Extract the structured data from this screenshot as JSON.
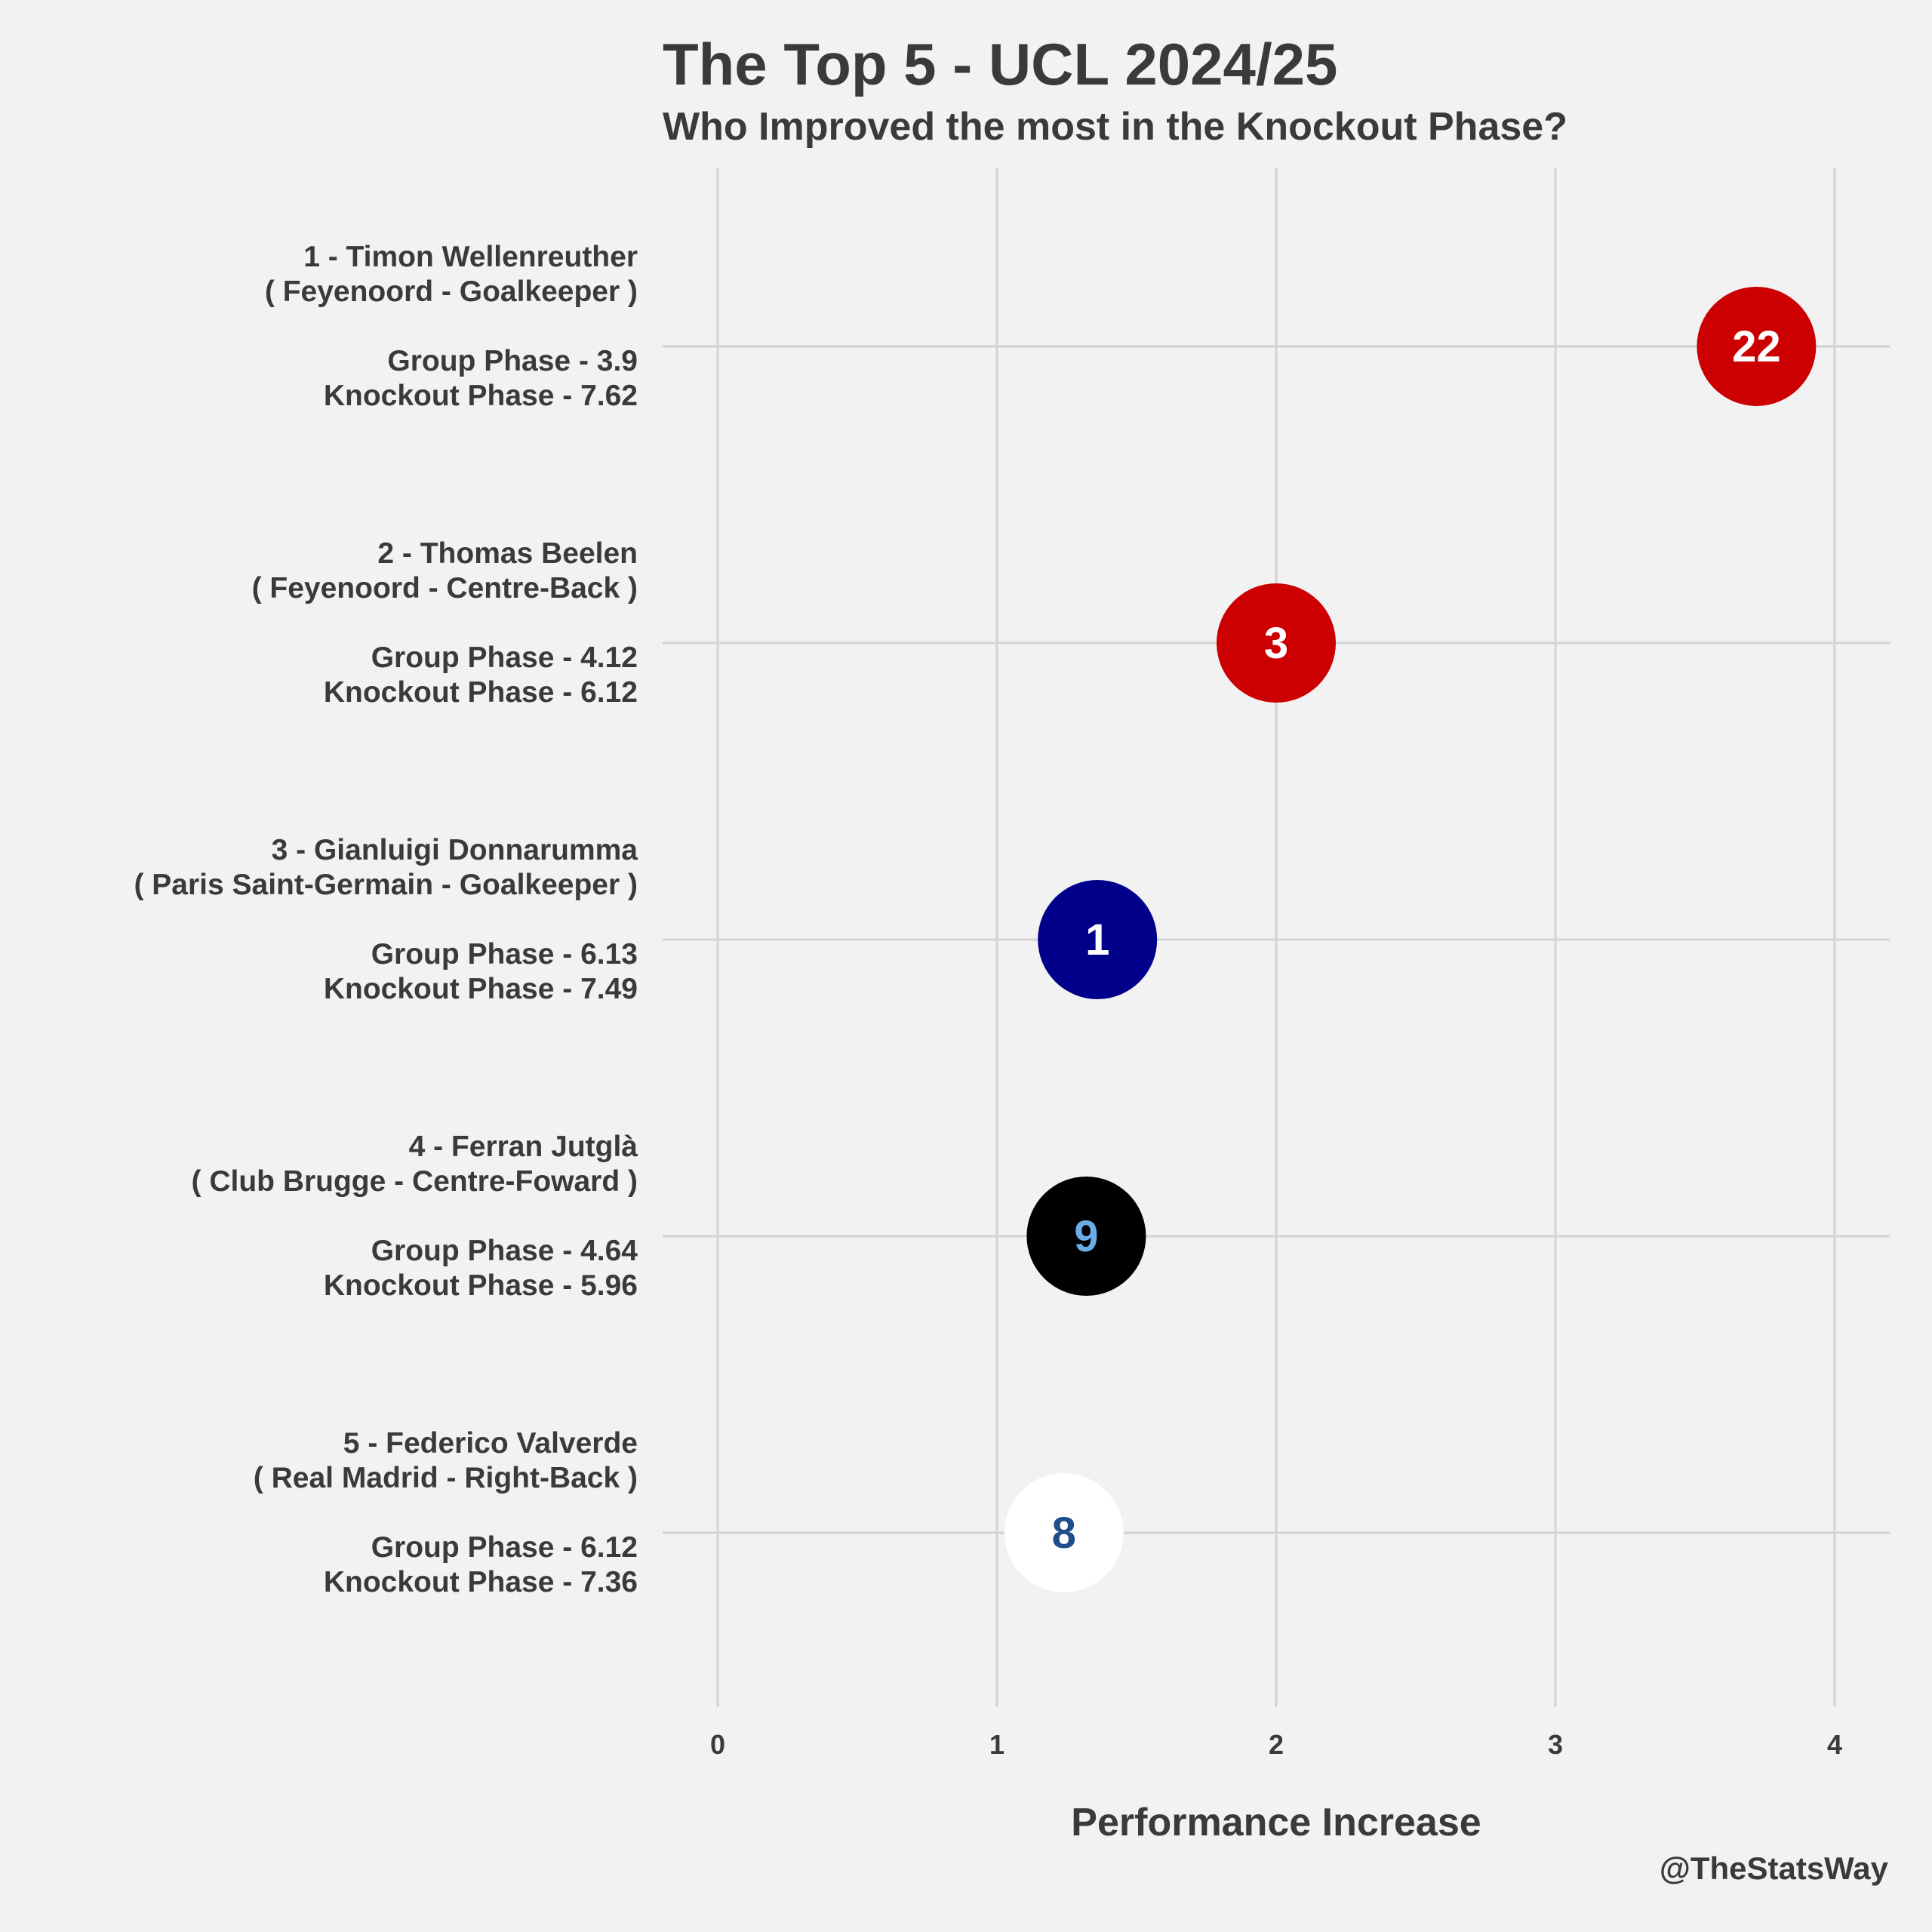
{
  "chart_data": {
    "type": "scatter",
    "title": "The Top 5 - UCL 2024/25",
    "subtitle": "Who Improved the most in the Knockout Phase?",
    "xlabel": "Performance Increase",
    "ylabel": "",
    "xlim": [
      -0.2,
      4.2
    ],
    "xticks": [
      0,
      1,
      2,
      3,
      4
    ],
    "grid": true,
    "caption": "@TheStatsWay",
    "rows": [
      {
        "rank_name": "1 - Timon Wellenreuther",
        "team_position": "( Feyenoord - Goalkeeper )",
        "group_phase": "Group Phase - 3.9",
        "knockout_phase": "Knockout Phase - 7.62",
        "x": 3.72,
        "shirt_number": "22",
        "fill": "#cc0000",
        "text_color": "#ffffff"
      },
      {
        "rank_name": "2 - Thomas Beelen",
        "team_position": "( Feyenoord - Centre-Back )",
        "group_phase": "Group Phase - 4.12",
        "knockout_phase": "Knockout Phase - 6.12",
        "x": 2.0,
        "shirt_number": "3",
        "fill": "#cc0000",
        "text_color": "#ffffff"
      },
      {
        "rank_name": "3 - Gianluigi Donnarumma",
        "team_position": "( Paris Saint-Germain - Goalkeeper )",
        "group_phase": "Group Phase - 6.13",
        "knockout_phase": "Knockout Phase - 7.49",
        "x": 1.36,
        "shirt_number": "1",
        "fill": "#00008b",
        "text_color": "#ffffff"
      },
      {
        "rank_name": "4 - Ferran Jutglà",
        "team_position": "( Club Brugge - Centre-Foward )",
        "group_phase": "Group Phase - 4.64",
        "knockout_phase": "Knockout Phase - 5.96",
        "x": 1.32,
        "shirt_number": "9",
        "fill": "#000000",
        "text_color": "#6aaee8"
      },
      {
        "rank_name": "5 - Federico Valverde",
        "team_position": "( Real Madrid - Right-Back )",
        "group_phase": "Group Phase - 6.12",
        "knockout_phase": "Knockout Phase - 7.36",
        "x": 1.24,
        "shirt_number": "8",
        "fill": "#ffffff",
        "text_color": "#1f4e8c"
      }
    ]
  }
}
